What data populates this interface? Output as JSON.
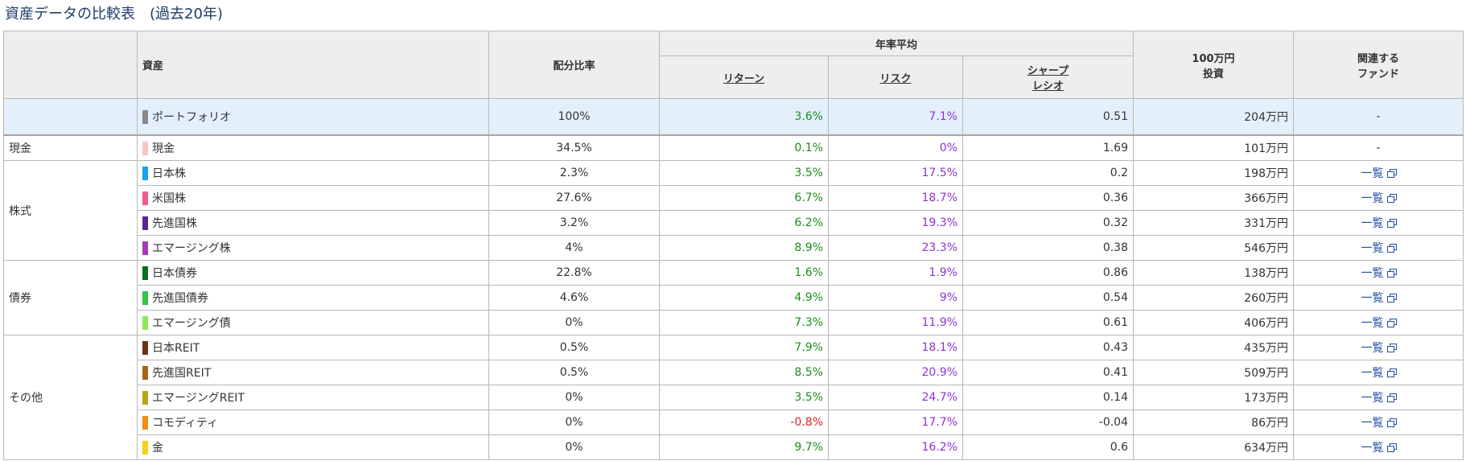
{
  "title": "資産データの比較表　(過去20年)",
  "headers": {
    "asset": "資産",
    "allocation": "配分比率",
    "annual_avg": "年率平均",
    "return": "リターン",
    "risk": "リスク",
    "sharpe_line1": "シャープ",
    "sharpe_line2": "レシオ",
    "invest_line1": "100万円",
    "invest_line2": "投資",
    "fund_line1": "関連する",
    "fund_line2": "ファンド"
  },
  "colors": {
    "header_bg": "#eeeeee",
    "portfolio_bg": "#e3f0fc",
    "return": "#1c8c1c",
    "return_negative": "#d42424",
    "risk": "#8c32d4",
    "link": "#1f4fa3",
    "title": "#1c3b6b"
  },
  "portfolio": {
    "name": "ポートフォリオ",
    "color": "#888888",
    "allocation": "100%",
    "return": "3.6%",
    "risk": "7.1%",
    "sharpe": "0.51",
    "invest": "204万円",
    "fund": "-"
  },
  "groups": {
    "cash": {
      "label": "現金"
    },
    "stocks": {
      "label": "株式"
    },
    "bonds": {
      "label": "債券"
    },
    "others": {
      "label": "その他"
    }
  },
  "rows": [
    {
      "group": "cash",
      "name": "現金",
      "color": "#f7c6c0",
      "allocation": "34.5%",
      "return": "0.1%",
      "risk": "0%",
      "sharpe": "1.69",
      "invest": "101万円",
      "fund": "-",
      "fund_icon": ""
    },
    {
      "group": "stocks",
      "name": "日本株",
      "color": "#1aa3e8",
      "allocation": "2.3%",
      "return": "3.5%",
      "risk": "17.5%",
      "sharpe": "0.2",
      "invest": "198万円",
      "fund": "一覧",
      "fund_icon": "external-window-icon"
    },
    {
      "group": "stocks",
      "name": "米国株",
      "color": "#ee5b8c",
      "allocation": "27.6%",
      "return": "6.7%",
      "risk": "18.7%",
      "sharpe": "0.36",
      "invest": "366万円",
      "fund": "一覧",
      "fund_icon": "external-window-icon"
    },
    {
      "group": "stocks",
      "name": "先進国株",
      "color": "#5a2a91",
      "allocation": "3.2%",
      "return": "6.2%",
      "risk": "19.3%",
      "sharpe": "0.32",
      "invest": "331万円",
      "fund": "一覧",
      "fund_icon": "external-window-icon"
    },
    {
      "group": "stocks",
      "name": "エマージング株",
      "color": "#a33bb5",
      "allocation": "4%",
      "return": "8.9%",
      "risk": "23.3%",
      "sharpe": "0.38",
      "invest": "546万円",
      "fund": "一覧",
      "fund_icon": "external-window-icon"
    },
    {
      "group": "bonds",
      "name": "日本債券",
      "color": "#0f6e1e",
      "allocation": "22.8%",
      "return": "1.6%",
      "risk": "1.9%",
      "sharpe": "0.86",
      "invest": "138万円",
      "fund": "一覧",
      "fund_icon": "external-window-icon"
    },
    {
      "group": "bonds",
      "name": "先進国債券",
      "color": "#33c44a",
      "allocation": "4.6%",
      "return": "4.9%",
      "risk": "9%",
      "sharpe": "0.54",
      "invest": "260万円",
      "fund": "一覧",
      "fund_icon": "external-window-icon"
    },
    {
      "group": "bonds",
      "name": "エマージング債",
      "color": "#8fe85a",
      "allocation": "0%",
      "return": "7.3%",
      "risk": "11.9%",
      "sharpe": "0.61",
      "invest": "406万円",
      "fund": "一覧",
      "fund_icon": "external-window-icon"
    },
    {
      "group": "others",
      "name": "日本REIT",
      "color": "#6b3512",
      "allocation": "0.5%",
      "return": "7.9%",
      "risk": "18.1%",
      "sharpe": "0.43",
      "invest": "435万円",
      "fund": "一覧",
      "fund_icon": "external-window-icon"
    },
    {
      "group": "others",
      "name": "先進国REIT",
      "color": "#a36614",
      "allocation": "0.5%",
      "return": "8.5%",
      "risk": "20.9%",
      "sharpe": "0.41",
      "invest": "509万円",
      "fund": "一覧",
      "fund_icon": "external-window-icon"
    },
    {
      "group": "others",
      "name": "エマージングREIT",
      "color": "#b8a51a",
      "allocation": "0%",
      "return": "3.5%",
      "risk": "24.7%",
      "sharpe": "0.14",
      "invest": "173万円",
      "fund": "一覧",
      "fund_icon": "external-window-icon"
    },
    {
      "group": "others",
      "name": "コモディティ",
      "color": "#f28c12",
      "allocation": "0%",
      "return": "-0.8%",
      "risk": "17.7%",
      "sharpe": "-0.04",
      "invest": "86万円",
      "fund": "一覧",
      "fund_icon": "external-window-icon"
    },
    {
      "group": "others",
      "name": "金",
      "color": "#f5d11a",
      "allocation": "0%",
      "return": "9.7%",
      "risk": "16.2%",
      "sharpe": "0.6",
      "invest": "634万円",
      "fund": "一覧",
      "fund_icon": "external-window-icon"
    }
  ]
}
